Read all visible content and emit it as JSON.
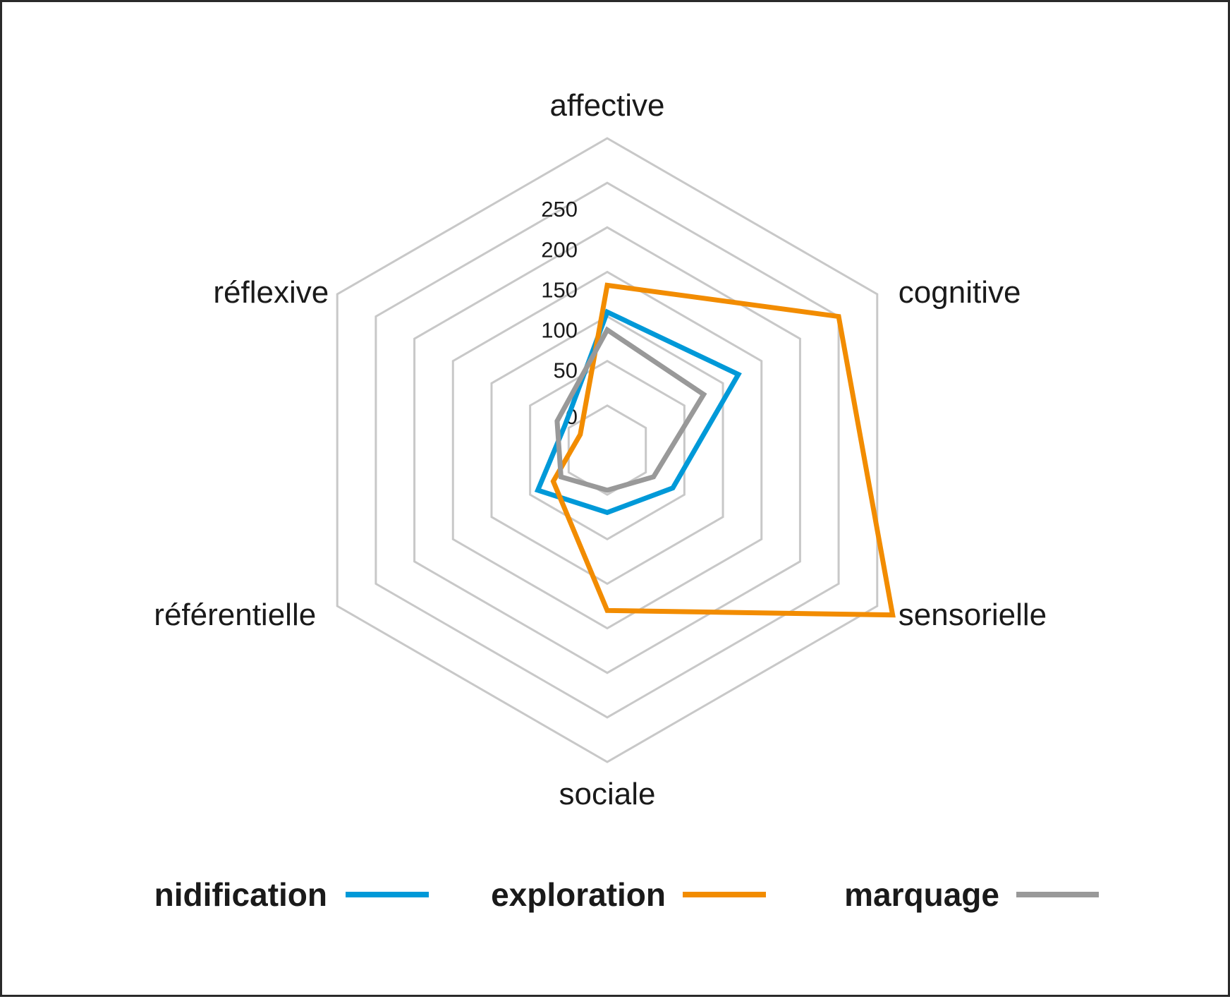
{
  "chart_data": {
    "type": "radar",
    "categories": [
      "affective",
      "cognitive",
      "sensorielle",
      "sociale",
      "référentielle",
      "réflexive"
    ],
    "radial_ticks": [
      "0",
      "50",
      "100",
      "150",
      "200",
      "250"
    ],
    "range": [
      -50,
      300
    ],
    "series": [
      {
        "name": "nidification",
        "color": "#0099d8",
        "values": [
          105,
          120,
          35,
          20,
          40,
          5
        ]
      },
      {
        "name": "exploration",
        "color": "#f28c00",
        "values": [
          135,
          250,
          320,
          130,
          20,
          -15
        ]
      },
      {
        "name": "marquage",
        "color": "#999999",
        "values": [
          85,
          75,
          10,
          -5,
          10,
          15
        ]
      }
    ],
    "legend_position": "bottom",
    "grid": true
  }
}
